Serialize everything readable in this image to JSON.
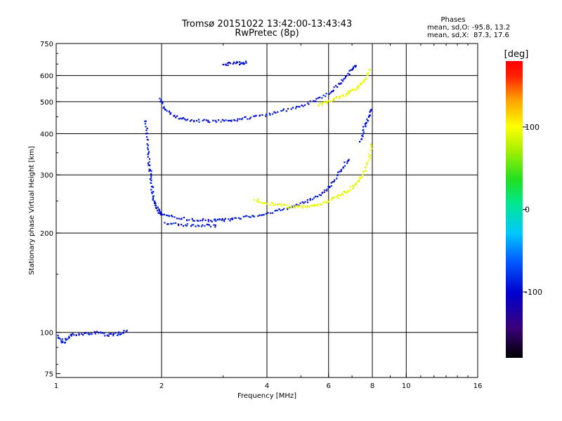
{
  "chart_data": {
    "type": "scatter",
    "title": "Tromsø 20151022 13:42:00-13:43:43",
    "subtitle": "RwPretec (8p)",
    "xlabel": "Frequency [MHz]",
    "ylabel": "Stationary phase Virtual Height [km]",
    "x_scale": "log",
    "y_scale": "log",
    "xlim": [
      1,
      16
    ],
    "ylim": [
      73,
      750
    ],
    "x_ticks": [
      1,
      2,
      4,
      6,
      8,
      10,
      16
    ],
    "x_tick_labels": [
      "1",
      "2",
      "4",
      "6",
      "8",
      "10",
      "16"
    ],
    "y_ticks": [
      75,
      100,
      200,
      300,
      400,
      500,
      600,
      750
    ],
    "y_tick_labels": [
      "75",
      "100",
      "200",
      "300",
      "400",
      "500",
      "600",
      "750"
    ],
    "x_grid": [
      2,
      4,
      6,
      8,
      10
    ],
    "y_grid": [
      100,
      200,
      300,
      400,
      500,
      600
    ],
    "legend": {
      "title": "Phases",
      "line1": "mean, sd,O: -95.8, 13.2",
      "line2": "mean, sd,X:  87.3, 17.6"
    },
    "colorbar": {
      "label": "[deg]",
      "range": [
        -180,
        180
      ],
      "ticks": [
        100,
        0,
        -100
      ],
      "tick_labels": [
        "100",
        "0",
        "-100"
      ]
    },
    "series": [
      {
        "mode": "O",
        "phase_mean": -95.8,
        "traces": [
          {
            "f": [
              1.8,
              1.82,
              1.84,
              1.86,
              1.88,
              1.9,
              1.95,
              2.0,
              2.2,
              2.5,
              2.8,
              3.0,
              3.3,
              3.7,
              4.2,
              4.7,
              5.2,
              5.7,
              6.1,
              6.5,
              6.9
            ],
            "h": [
              440,
              380,
              330,
              300,
              270,
              250,
              235,
              228,
              222,
              219,
              218,
              219,
              221,
              226,
              232,
              240,
              250,
              262,
              280,
              310,
              340
            ]
          },
          {
            "f": [
              1.98,
              2.05,
              2.2,
              2.4,
              2.7,
              3.0,
              3.3,
              3.7,
              4.2,
              4.8,
              5.4,
              6.0,
              6.5,
              6.9,
              7.2
            ],
            "h": [
              510,
              470,
              450,
              440,
              436,
              437,
              441,
              450,
              462,
              478,
              500,
              530,
              570,
              615,
              650
            ]
          },
          {
            "f": [
              2.05,
              2.3,
              2.6,
              2.9
            ],
            "h": [
              214,
              212,
              211,
              210
            ]
          },
          {
            "f": [
              3.0,
              3.2,
              3.4,
              3.5
            ],
            "h": [
              650,
              652,
              655,
              658
            ]
          },
          {
            "f": [
              1.01,
              1.05,
              1.1,
              1.2,
              1.3,
              1.4,
              1.5,
              1.6
            ],
            "h": [
              97,
              93,
              98,
              99,
              100,
              98,
              99,
              101
            ]
          },
          {
            "f": [
              7.4,
              7.6,
              7.8,
              7.95
            ],
            "h": [
              380,
              420,
              450,
              480
            ]
          }
        ]
      },
      {
        "mode": "X",
        "phase_mean": 87.3,
        "traces": [
          {
            "f": [
              3.7,
              4.0,
              4.4,
              4.8,
              5.2,
              5.6,
              6.0,
              6.4,
              6.8,
              7.2,
              7.5,
              7.8,
              8.0
            ],
            "h": [
              252,
              246,
              242,
              240,
              241,
              244,
              250,
              258,
              268,
              282,
              300,
              330,
              380
            ]
          },
          {
            "f": [
              5.6,
              6.0,
              6.4,
              6.8,
              7.2,
              7.6,
              7.9
            ],
            "h": [
              488,
              500,
              515,
              530,
              550,
              580,
              630
            ]
          }
        ]
      }
    ]
  }
}
